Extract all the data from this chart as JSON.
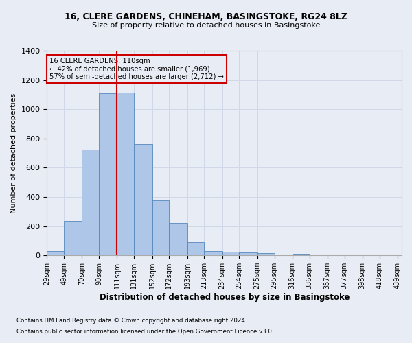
{
  "title_line1": "16, CLERE GARDENS, CHINEHAM, BASINGSTOKE, RG24 8LZ",
  "title_line2": "Size of property relative to detached houses in Basingstoke",
  "xlabel": "Distribution of detached houses by size in Basingstoke",
  "ylabel": "Number of detached properties",
  "footnote1": "Contains HM Land Registry data © Crown copyright and database right 2024.",
  "footnote2": "Contains public sector information licensed under the Open Government Licence v3.0.",
  "bin_labels": [
    "29sqm",
    "49sqm",
    "70sqm",
    "90sqm",
    "111sqm",
    "131sqm",
    "152sqm",
    "172sqm",
    "193sqm",
    "213sqm",
    "234sqm",
    "254sqm",
    "275sqm",
    "295sqm",
    "316sqm",
    "336sqm",
    "357sqm",
    "377sqm",
    "398sqm",
    "418sqm",
    "439sqm"
  ],
  "bar_values": [
    30,
    235,
    725,
    1110,
    1115,
    760,
    375,
    220,
    90,
    30,
    25,
    20,
    15,
    0,
    10,
    0,
    0,
    0,
    0,
    0
  ],
  "bar_color": "#aec6e8",
  "bar_edge_color": "#5588bb",
  "grid_color": "#d0d8e8",
  "background_color": "#e8edf5",
  "vline_x": 111,
  "vline_color": "#cc0000",
  "annotation_text": "16 CLERE GARDENS: 110sqm\n← 42% of detached houses are smaller (1,969)\n57% of semi-detached houses are larger (2,712) →",
  "annotation_box_color": "#cc0000",
  "ylim": [
    0,
    1400
  ],
  "yticks": [
    0,
    200,
    400,
    600,
    800,
    1000,
    1200,
    1400
  ],
  "bin_edges": [
    29,
    49,
    70,
    90,
    111,
    131,
    152,
    172,
    193,
    213,
    234,
    254,
    275,
    295,
    316,
    336,
    357,
    377,
    398,
    418,
    439
  ]
}
